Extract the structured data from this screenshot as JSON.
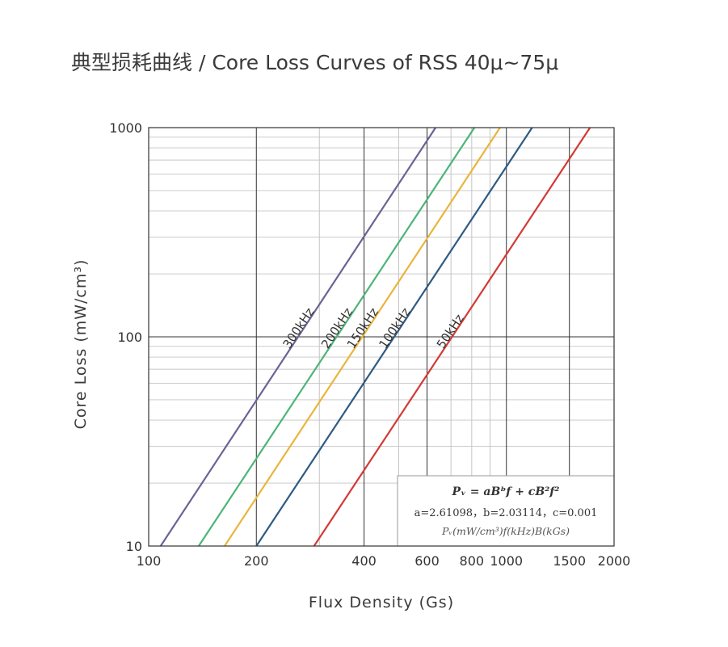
{
  "title": "典型损耗曲线 / Core Loss Curves of RSS 40μ~75μ",
  "chart_data": {
    "type": "line",
    "xscale": "log",
    "yscale": "log",
    "xlabel": "Flux Density (Gs)",
    "ylabel": "Core Loss (mW/cm³)",
    "xlim": [
      100,
      2000
    ],
    "ylim": [
      10,
      1000
    ],
    "x_ticks": [
      {
        "value": 100,
        "label": "100"
      },
      {
        "value": 200,
        "label": "200"
      },
      {
        "value": 400,
        "label": "400"
      },
      {
        "value": 600,
        "label": "600"
      },
      {
        "value": 800,
        "label": "800"
      },
      {
        "value": 1000,
        "label": "1000"
      },
      {
        "value": 1500,
        "label": "1500"
      },
      {
        "value": 2000,
        "label": "2000"
      }
    ],
    "y_ticks": [
      {
        "value": 10,
        "label": "10"
      },
      {
        "value": 100,
        "label": "100"
      },
      {
        "value": 1000,
        "label": "1000"
      }
    ],
    "grid": true,
    "series": [
      {
        "name": "300kHz",
        "color": "#6b6394",
        "x": [
          108,
          634
        ],
        "y": [
          10,
          1000
        ]
      },
      {
        "name": "200kHz",
        "color": "#4cb578",
        "x": [
          138,
          814
        ],
        "y": [
          10,
          1000
        ]
      },
      {
        "name": "150kHz",
        "color": "#e9b53c",
        "x": [
          163,
          960
        ],
        "y": [
          10,
          1000
        ]
      },
      {
        "name": "100kHz",
        "color": "#2f5a82",
        "x": [
          200,
          1180
        ],
        "y": [
          10,
          1000
        ]
      },
      {
        "name": "50kHz",
        "color": "#d23a33",
        "x": [
          290,
          1713
        ],
        "y": [
          10,
          1000
        ]
      }
    ],
    "formula": {
      "equation": "Pᵥ = aBᵇf + cB²f²",
      "coefficients": "a=2.61098，b=2.03114，c=0.001",
      "units": "Pᵥ(mW/cm³)f(kHz)B(kGs)"
    }
  }
}
